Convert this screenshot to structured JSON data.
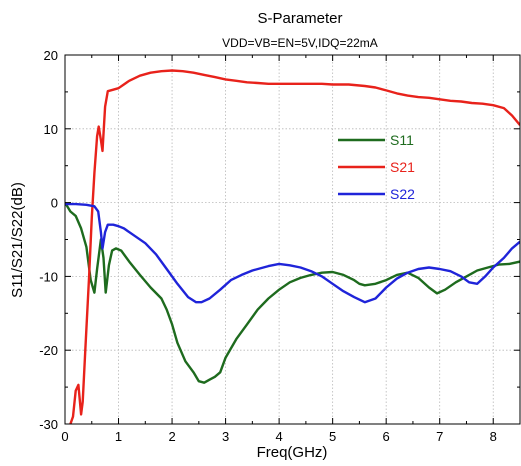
{
  "chart_data": {
    "type": "line",
    "title": "S-Parameter",
    "subtitle": "VDD=VB=EN=5V,IDQ=22mA",
    "xlabel": "Freq(GHz)",
    "ylabel": "S11/S21/S22(dB)",
    "xlim": [
      0,
      8.5
    ],
    "ylim": [
      -30,
      20
    ],
    "xticks": [
      "0",
      "1",
      "2",
      "3",
      "4",
      "5",
      "6",
      "7",
      "8"
    ],
    "yticks": [
      "20",
      "10",
      "0",
      "-10",
      "-20",
      "-30"
    ],
    "grid": true,
    "legend_position": "center-right",
    "series": [
      {
        "name": "S11",
        "color": "#1e6b1e",
        "points": [
          [
            0,
            0
          ],
          [
            0.1,
            -1.2
          ],
          [
            0.2,
            -1.8
          ],
          [
            0.3,
            -3.5
          ],
          [
            0.4,
            -6
          ],
          [
            0.48,
            -10.5
          ],
          [
            0.55,
            -12.2
          ],
          [
            0.6,
            -9
          ],
          [
            0.67,
            -5
          ],
          [
            0.72,
            -7.5
          ],
          [
            0.76,
            -12.2
          ],
          [
            0.82,
            -8.5
          ],
          [
            0.88,
            -6.5
          ],
          [
            0.95,
            -6.2
          ],
          [
            1.05,
            -6.5
          ],
          [
            1.2,
            -8
          ],
          [
            1.4,
            -9.8
          ],
          [
            1.6,
            -11.5
          ],
          [
            1.8,
            -13
          ],
          [
            1.9,
            -14.5
          ],
          [
            2.0,
            -16.5
          ],
          [
            2.1,
            -19
          ],
          [
            2.25,
            -21.5
          ],
          [
            2.4,
            -23
          ],
          [
            2.5,
            -24.2
          ],
          [
            2.6,
            -24.4
          ],
          [
            2.7,
            -24
          ],
          [
            2.8,
            -23.6
          ],
          [
            2.9,
            -23
          ],
          [
            3.0,
            -21
          ],
          [
            3.2,
            -18.5
          ],
          [
            3.4,
            -16.5
          ],
          [
            3.6,
            -14.5
          ],
          [
            3.8,
            -13
          ],
          [
            4.0,
            -11.8
          ],
          [
            4.2,
            -10.8
          ],
          [
            4.4,
            -10.2
          ],
          [
            4.6,
            -9.8
          ],
          [
            4.8,
            -9.5
          ],
          [
            5.0,
            -9.4
          ],
          [
            5.2,
            -9.8
          ],
          [
            5.4,
            -10.5
          ],
          [
            5.5,
            -11
          ],
          [
            5.6,
            -11.2
          ],
          [
            5.8,
            -11
          ],
          [
            6.0,
            -10.5
          ],
          [
            6.2,
            -9.8
          ],
          [
            6.4,
            -9.5
          ],
          [
            6.6,
            -10.2
          ],
          [
            6.8,
            -11.5
          ],
          [
            6.95,
            -12.3
          ],
          [
            7.1,
            -11.8
          ],
          [
            7.3,
            -10.8
          ],
          [
            7.5,
            -10
          ],
          [
            7.7,
            -9.2
          ],
          [
            7.9,
            -8.8
          ],
          [
            8.1,
            -8.4
          ],
          [
            8.3,
            -8.3
          ],
          [
            8.5,
            -8
          ]
        ]
      },
      {
        "name": "S21",
        "color": "#e8221b",
        "points": [
          [
            0.1,
            -30
          ],
          [
            0.15,
            -29
          ],
          [
            0.2,
            -25.5
          ],
          [
            0.25,
            -24.7
          ],
          [
            0.3,
            -28.7
          ],
          [
            0.33,
            -27
          ],
          [
            0.38,
            -20
          ],
          [
            0.45,
            -10
          ],
          [
            0.5,
            -2
          ],
          [
            0.55,
            4
          ],
          [
            0.6,
            9
          ],
          [
            0.63,
            10.3
          ],
          [
            0.67,
            8.5
          ],
          [
            0.7,
            7
          ],
          [
            0.75,
            13
          ],
          [
            0.8,
            15.1
          ],
          [
            0.9,
            15.3
          ],
          [
            1.0,
            15.5
          ],
          [
            1.2,
            16.5
          ],
          [
            1.4,
            17.2
          ],
          [
            1.6,
            17.6
          ],
          [
            1.8,
            17.8
          ],
          [
            2.0,
            17.9
          ],
          [
            2.2,
            17.8
          ],
          [
            2.4,
            17.6
          ],
          [
            2.6,
            17.3
          ],
          [
            2.8,
            17
          ],
          [
            3.0,
            16.7
          ],
          [
            3.2,
            16.5
          ],
          [
            3.4,
            16.3
          ],
          [
            3.6,
            16.2
          ],
          [
            3.8,
            16.1
          ],
          [
            4.0,
            16.1
          ],
          [
            4.2,
            16.1
          ],
          [
            4.5,
            16.1
          ],
          [
            4.8,
            16.1
          ],
          [
            5.0,
            16
          ],
          [
            5.3,
            16
          ],
          [
            5.6,
            15.8
          ],
          [
            5.8,
            15.6
          ],
          [
            6.0,
            15.2
          ],
          [
            6.2,
            14.8
          ],
          [
            6.4,
            14.5
          ],
          [
            6.6,
            14.3
          ],
          [
            6.8,
            14.2
          ],
          [
            7.0,
            14
          ],
          [
            7.2,
            13.8
          ],
          [
            7.4,
            13.7
          ],
          [
            7.6,
            13.5
          ],
          [
            7.8,
            13.4
          ],
          [
            8.0,
            13.2
          ],
          [
            8.2,
            12.8
          ],
          [
            8.35,
            11.8
          ],
          [
            8.5,
            10.5
          ]
        ]
      },
      {
        "name": "S22",
        "color": "#1f24d9",
        "points": [
          [
            0,
            -0.2
          ],
          [
            0.2,
            -0.2
          ],
          [
            0.4,
            -0.3
          ],
          [
            0.55,
            -0.5
          ],
          [
            0.62,
            -1.2
          ],
          [
            0.67,
            -4
          ],
          [
            0.7,
            -6.2
          ],
          [
            0.75,
            -4
          ],
          [
            0.8,
            -3
          ],
          [
            0.9,
            -3
          ],
          [
            1.0,
            -3.2
          ],
          [
            1.1,
            -3.5
          ],
          [
            1.3,
            -4.5
          ],
          [
            1.5,
            -5.5
          ],
          [
            1.7,
            -7
          ],
          [
            1.9,
            -9
          ],
          [
            2.1,
            -11
          ],
          [
            2.3,
            -12.8
          ],
          [
            2.45,
            -13.5
          ],
          [
            2.55,
            -13.5
          ],
          [
            2.7,
            -13
          ],
          [
            2.9,
            -11.8
          ],
          [
            3.1,
            -10.5
          ],
          [
            3.3,
            -9.8
          ],
          [
            3.5,
            -9.2
          ],
          [
            3.8,
            -8.6
          ],
          [
            4.0,
            -8.3
          ],
          [
            4.2,
            -8.5
          ],
          [
            4.4,
            -8.8
          ],
          [
            4.6,
            -9.3
          ],
          [
            4.8,
            -10
          ],
          [
            5.0,
            -11
          ],
          [
            5.2,
            -12
          ],
          [
            5.4,
            -12.8
          ],
          [
            5.6,
            -13.5
          ],
          [
            5.8,
            -13
          ],
          [
            6.0,
            -11.5
          ],
          [
            6.2,
            -10.3
          ],
          [
            6.4,
            -9.5
          ],
          [
            6.6,
            -9
          ],
          [
            6.8,
            -8.8
          ],
          [
            7.0,
            -9
          ],
          [
            7.2,
            -9.3
          ],
          [
            7.4,
            -10
          ],
          [
            7.55,
            -10.8
          ],
          [
            7.7,
            -11
          ],
          [
            7.85,
            -10
          ],
          [
            8.0,
            -8.8
          ],
          [
            8.2,
            -7.5
          ],
          [
            8.35,
            -6.2
          ],
          [
            8.5,
            -5.3
          ]
        ]
      }
    ]
  }
}
